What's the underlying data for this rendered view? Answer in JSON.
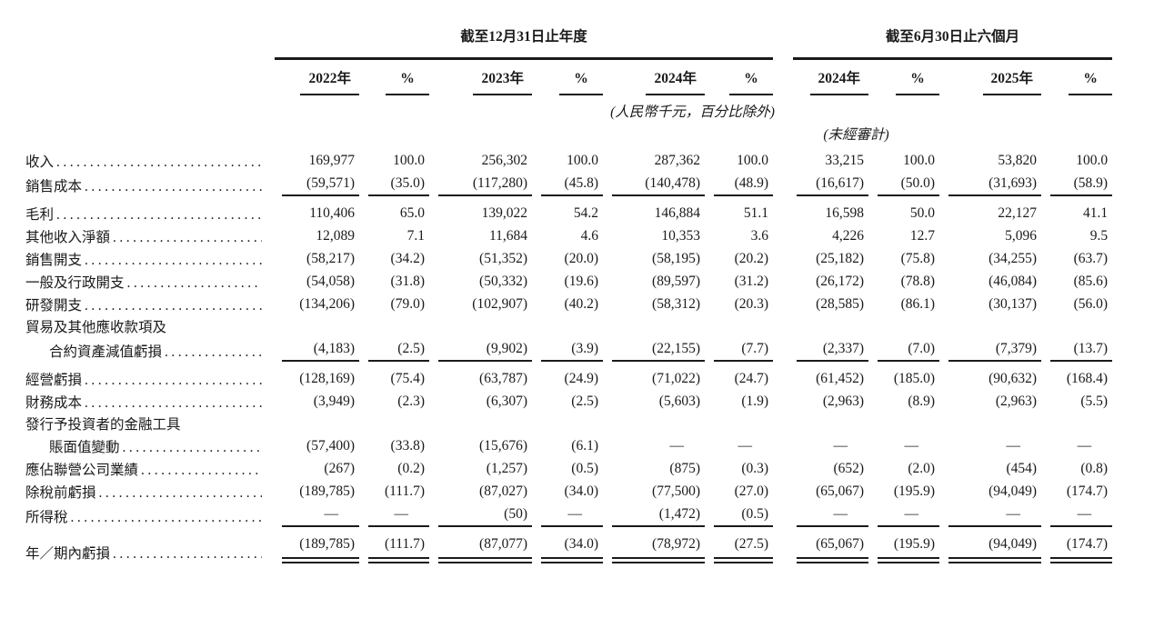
{
  "page": {
    "background": "#ffffff",
    "text_color": "#1a1a1a",
    "rule_color": "#1a1a1a"
  },
  "header": {
    "group_annual": "截至12月31日止年度",
    "group_interim": "截至6月30日止六個月",
    "columns": [
      "2022年",
      "%",
      "2023年",
      "%",
      "2024年",
      "%",
      "2024年",
      "%",
      "2025年",
      "%"
    ],
    "note_currency": "(人民幣千元，百分比除外)",
    "note_unaudited": "(未經審計)"
  },
  "table": {
    "rows": [
      {
        "label": "收入",
        "leaders": true,
        "bold": false,
        "indent": false,
        "rule": "none",
        "gap": false,
        "values": [
          "169,977",
          "100.0",
          "256,302",
          "100.0",
          "287,362",
          "100.0",
          "33,215",
          "100.0",
          "53,820",
          "100.0"
        ]
      },
      {
        "label": "銷售成本",
        "leaders": true,
        "bold": false,
        "indent": false,
        "rule": "single",
        "gap": false,
        "values": [
          "(59,571)",
          "(35.0)",
          "(117,280)",
          "(45.8)",
          "(140,478)",
          "(48.9)",
          "(16,617)",
          "(50.0)",
          "(31,693)",
          "(58.9)"
        ]
      },
      {
        "label": "毛利",
        "leaders": true,
        "bold": true,
        "indent": false,
        "rule": "none",
        "gap": true,
        "values": [
          "110,406",
          "65.0",
          "139,022",
          "54.2",
          "146,884",
          "51.1",
          "16,598",
          "50.0",
          "22,127",
          "41.1"
        ]
      },
      {
        "label": "其他收入淨額",
        "leaders": true,
        "bold": false,
        "indent": false,
        "rule": "none",
        "gap": false,
        "values": [
          "12,089",
          "7.1",
          "11,684",
          "4.6",
          "10,353",
          "3.6",
          "4,226",
          "12.7",
          "5,096",
          "9.5"
        ]
      },
      {
        "label": "銷售開支",
        "leaders": true,
        "bold": false,
        "indent": false,
        "rule": "none",
        "gap": false,
        "values": [
          "(58,217)",
          "(34.2)",
          "(51,352)",
          "(20.0)",
          "(58,195)",
          "(20.2)",
          "(25,182)",
          "(75.8)",
          "(34,255)",
          "(63.7)"
        ]
      },
      {
        "label": "一般及行政開支",
        "leaders": true,
        "bold": false,
        "indent": false,
        "rule": "none",
        "gap": false,
        "values": [
          "(54,058)",
          "(31.8)",
          "(50,332)",
          "(19.6)",
          "(89,597)",
          "(31.2)",
          "(26,172)",
          "(78.8)",
          "(46,084)",
          "(85.6)"
        ]
      },
      {
        "label": "研發開支",
        "leaders": true,
        "bold": false,
        "indent": false,
        "rule": "none",
        "gap": false,
        "values": [
          "(134,206)",
          "(79.0)",
          "(102,907)",
          "(40.2)",
          "(58,312)",
          "(20.3)",
          "(28,585)",
          "(86.1)",
          "(30,137)",
          "(56.0)"
        ]
      },
      {
        "label": "貿易及其他應收款項及",
        "leaders": false,
        "bold": false,
        "indent": false,
        "rule": "none",
        "gap": false,
        "values": null
      },
      {
        "label": "合約資產減值虧損",
        "leaders": true,
        "bold": false,
        "indent": true,
        "rule": "single",
        "gap": false,
        "values": [
          "(4,183)",
          "(2.5)",
          "(9,902)",
          "(3.9)",
          "(22,155)",
          "(7.7)",
          "(2,337)",
          "(7.0)",
          "(7,379)",
          "(13.7)"
        ]
      },
      {
        "label": "經營虧損",
        "leaders": true,
        "bold": true,
        "indent": false,
        "rule": "none",
        "gap": true,
        "values": [
          "(128,169)",
          "(75.4)",
          "(63,787)",
          "(24.9)",
          "(71,022)",
          "(24.7)",
          "(61,452)",
          "(185.0)",
          "(90,632)",
          "(168.4)"
        ]
      },
      {
        "label": "財務成本",
        "leaders": true,
        "bold": false,
        "indent": false,
        "rule": "none",
        "gap": false,
        "values": [
          "(3,949)",
          "(2.3)",
          "(6,307)",
          "(2.5)",
          "(5,603)",
          "(1.9)",
          "(2,963)",
          "(8.9)",
          "(2,963)",
          "(5.5)"
        ]
      },
      {
        "label": "發行予投資者的金融工具",
        "leaders": false,
        "bold": false,
        "indent": false,
        "rule": "none",
        "gap": false,
        "values": null
      },
      {
        "label": "賬面值變動",
        "leaders": true,
        "bold": false,
        "indent": true,
        "rule": "none",
        "gap": false,
        "values": [
          "(57,400)",
          "(33.8)",
          "(15,676)",
          "(6.1)",
          "—",
          "—",
          "—",
          "—",
          "—",
          "—"
        ]
      },
      {
        "label": "應佔聯營公司業績",
        "leaders": true,
        "bold": false,
        "indent": false,
        "rule": "none",
        "gap": false,
        "values": [
          "(267)",
          "(0.2)",
          "(1,257)",
          "(0.5)",
          "(875)",
          "(0.3)",
          "(652)",
          "(2.0)",
          "(454)",
          "(0.8)"
        ]
      },
      {
        "label": "除稅前虧損",
        "leaders": true,
        "bold": true,
        "indent": false,
        "rule": "none",
        "gap": false,
        "values": [
          "(189,785)",
          "(111.7)",
          "(87,027)",
          "(34.0)",
          "(77,500)",
          "(27.0)",
          "(65,067)",
          "(195.9)",
          "(94,049)",
          "(174.7)"
        ]
      },
      {
        "label": "所得稅",
        "leaders": true,
        "bold": false,
        "indent": false,
        "rule": "single",
        "gap": false,
        "values": [
          "—",
          "—",
          "(50)",
          "—",
          "(1,472)",
          "(0.5)",
          "—",
          "—",
          "—",
          "—"
        ]
      },
      {
        "label": "年／期內虧損",
        "leaders": true,
        "bold": true,
        "indent": false,
        "rule": "double",
        "gap": true,
        "values": [
          "(189,785)",
          "(111.7)",
          "(87,077)",
          "(34.0)",
          "(78,972)",
          "(27.5)",
          "(65,067)",
          "(195.9)",
          "(94,049)",
          "(174.7)"
        ]
      }
    ]
  }
}
